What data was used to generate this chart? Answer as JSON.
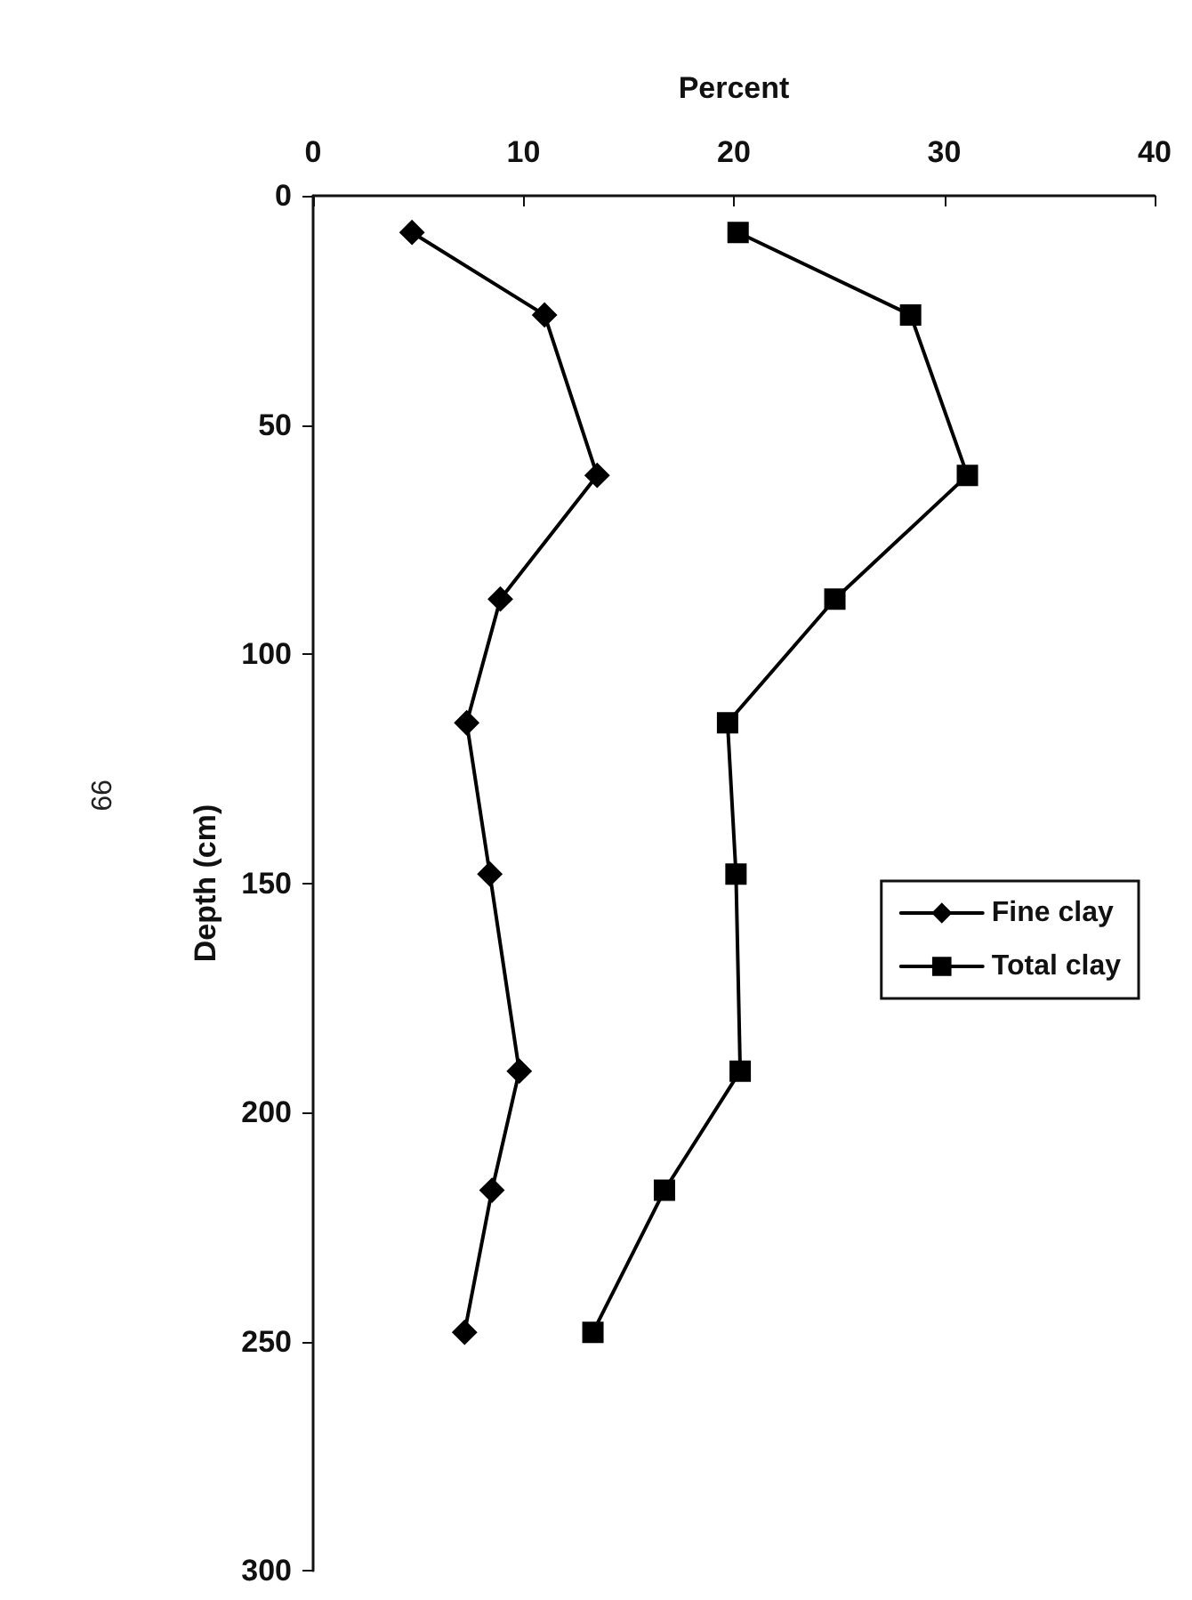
{
  "chart_data": {
    "type": "line",
    "xlabel": "Percent",
    "ylabel": "Depth (cm)",
    "xlim": [
      0,
      40
    ],
    "xticks": [
      0,
      10,
      20,
      30,
      40
    ],
    "ylim": [
      300,
      0
    ],
    "yticks": [
      0,
      50,
      100,
      150,
      200,
      250,
      300
    ],
    "series": [
      {
        "name": "Fine clay",
        "color": "#000000",
        "marker": "diamond",
        "x": [
          4.7,
          11.0,
          13.5,
          8.9,
          7.3,
          8.4,
          9.8,
          8.5,
          7.2
        ],
        "values": [
          8,
          26,
          61,
          88,
          115,
          148,
          191,
          217,
          248
        ]
      },
      {
        "name": "Total clay",
        "color": "#000000",
        "marker": "square",
        "x": [
          20.2,
          28.4,
          31.1,
          24.8,
          19.7,
          20.1,
          20.3,
          16.7,
          13.3
        ],
        "values": [
          8,
          26,
          61,
          88,
          115,
          148,
          191,
          217,
          248
        ]
      }
    ],
    "legend": "right",
    "grid": false,
    "line_style": "solid",
    "annotations": [
      "99"
    ]
  }
}
